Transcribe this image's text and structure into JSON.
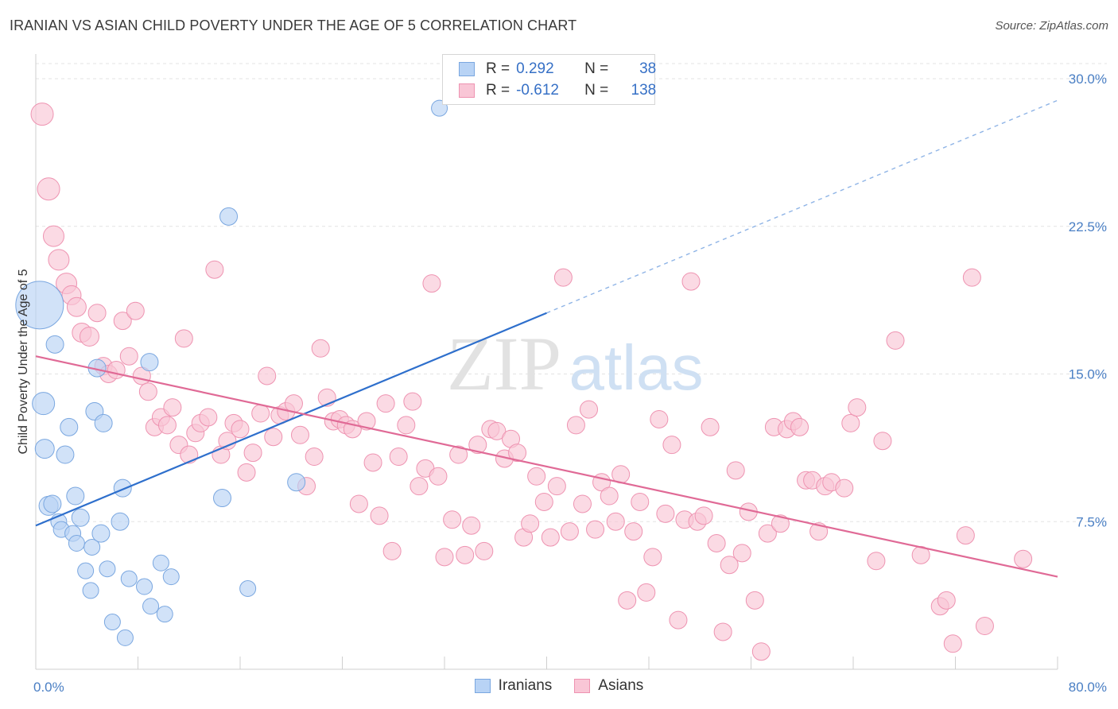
{
  "title": "IRANIAN VS ASIAN CHILD POVERTY UNDER THE AGE OF 5 CORRELATION CHART",
  "source": "Source: ZipAtlas.com",
  "watermark": {
    "zip": "ZIP",
    "atlas": "atlas"
  },
  "legend": {
    "r_label": "R =",
    "n_label": "N =",
    "rows": [
      {
        "r": "0.292",
        "n": "38",
        "fill": "#b8d3f5",
        "stroke": "#7aa7e0"
      },
      {
        "r": "-0.612",
        "n": "138",
        "fill": "#f9c6d6",
        "stroke": "#ee93b1"
      }
    ]
  },
  "bottom_legend": [
    {
      "label": "Iranians",
      "fill": "#b8d3f5",
      "stroke": "#7aa7e0"
    },
    {
      "label": "Asians",
      "fill": "#f9c6d6",
      "stroke": "#ee93b1"
    }
  ],
  "chart_data": {
    "type": "scatter",
    "title": "IRANIAN VS ASIAN CHILD POVERTY UNDER THE AGE OF 5 CORRELATION CHART",
    "xlabel": "",
    "ylabel": "Child Poverty Under the Age of 5",
    "xlim": [
      0,
      80
    ],
    "ylim": [
      0,
      30
    ],
    "x_tick_labels": [
      "0.0%",
      "80.0%"
    ],
    "y_ticks": [
      7.5,
      15.0,
      22.5,
      30.0
    ],
    "y_tick_labels": [
      "7.5%",
      "15.0%",
      "22.5%",
      "30.0%"
    ],
    "grid": "horizontal dashed",
    "legend_position": "top-center",
    "series": [
      {
        "name": "Iranians",
        "color": "#7aa7e0",
        "fill": "#b8d3f5",
        "trend": {
          "x0": 0,
          "y0": 7.3,
          "x1": 40,
          "y1": 18.1,
          "dashed_to_x": 80,
          "dashed_to_y": 28.9,
          "color": "#2e6fcc"
        },
        "points": [
          [
            0.3,
            18.5,
            3
          ],
          [
            0.6,
            13.5,
            1.4
          ],
          [
            0.7,
            11.2,
            1.2
          ],
          [
            1.0,
            8.3,
            1.2
          ],
          [
            1.5,
            16.5,
            1.1
          ],
          [
            1.3,
            8.4,
            1.1
          ],
          [
            1.8,
            7.5,
            1
          ],
          [
            2.0,
            7.1,
            1
          ],
          [
            2.3,
            10.9,
            1.1
          ],
          [
            2.6,
            12.3,
            1.1
          ],
          [
            2.9,
            6.9,
            1
          ],
          [
            3.1,
            8.8,
            1.1
          ],
          [
            3.2,
            6.4,
            1
          ],
          [
            3.5,
            7.7,
            1.1
          ],
          [
            3.9,
            5.0,
            1
          ],
          [
            4.3,
            4.0,
            1
          ],
          [
            4.4,
            6.2,
            1
          ],
          [
            4.6,
            13.1,
            1.1
          ],
          [
            4.8,
            15.3,
            1.1
          ],
          [
            5.1,
            6.9,
            1.1
          ],
          [
            5.3,
            12.5,
            1.1
          ],
          [
            5.6,
            5.1,
            1
          ],
          [
            6.0,
            2.4,
            1
          ],
          [
            6.6,
            7.5,
            1.1
          ],
          [
            6.8,
            9.2,
            1.1
          ],
          [
            7.0,
            1.6,
            1
          ],
          [
            7.3,
            4.6,
            1
          ],
          [
            8.5,
            4.2,
            1
          ],
          [
            8.9,
            15.6,
            1.1
          ],
          [
            9.0,
            3.2,
            1
          ],
          [
            9.8,
            5.4,
            1
          ],
          [
            10.1,
            2.8,
            1
          ],
          [
            10.6,
            4.7,
            1
          ],
          [
            14.6,
            8.7,
            1.1
          ],
          [
            15.1,
            23.0,
            1.1
          ],
          [
            16.6,
            4.1,
            1
          ],
          [
            20.4,
            9.5,
            1.1
          ],
          [
            31.6,
            28.5,
            1
          ]
        ]
      },
      {
        "name": "Asians",
        "color": "#ee93b1",
        "fill": "#f9c6d6",
        "trend": {
          "x0": 0,
          "y0": 15.9,
          "x1": 80,
          "y1": 4.7,
          "color": "#e06a96"
        },
        "points": [
          [
            0.5,
            28.2,
            1.4
          ],
          [
            1.0,
            24.4,
            1.4
          ],
          [
            1.4,
            22.0,
            1.3
          ],
          [
            1.8,
            20.8,
            1.3
          ],
          [
            2.4,
            19.6,
            1.3
          ],
          [
            2.8,
            19.0,
            1.2
          ],
          [
            3.2,
            18.4,
            1.2
          ],
          [
            3.6,
            17.1,
            1.2
          ],
          [
            4.2,
            16.9,
            1.2
          ],
          [
            4.8,
            18.1,
            1.1
          ],
          [
            5.3,
            15.4,
            1.1
          ],
          [
            5.7,
            15.0,
            1.1
          ],
          [
            6.3,
            15.2,
            1.1
          ],
          [
            6.8,
            17.7,
            1.1
          ],
          [
            7.3,
            15.9,
            1.1
          ],
          [
            7.8,
            18.2,
            1.1
          ],
          [
            8.3,
            14.9,
            1.1
          ],
          [
            8.8,
            14.1,
            1.1
          ],
          [
            9.3,
            12.3,
            1.1
          ],
          [
            9.8,
            12.8,
            1.1
          ],
          [
            10.3,
            12.4,
            1.1
          ],
          [
            10.7,
            13.3,
            1.1
          ],
          [
            11.2,
            11.4,
            1.1
          ],
          [
            11.6,
            16.8,
            1.1
          ],
          [
            12.0,
            10.9,
            1.1
          ],
          [
            12.5,
            12.0,
            1.1
          ],
          [
            12.9,
            12.5,
            1.1
          ],
          [
            13.5,
            12.8,
            1.1
          ],
          [
            14.0,
            20.3,
            1.1
          ],
          [
            14.5,
            10.9,
            1.1
          ],
          [
            15.0,
            11.6,
            1.1
          ],
          [
            15.5,
            12.5,
            1.1
          ],
          [
            16.0,
            12.2,
            1.1
          ],
          [
            16.5,
            10.0,
            1.1
          ],
          [
            17.0,
            11.0,
            1.1
          ],
          [
            17.6,
            13.0,
            1.1
          ],
          [
            18.1,
            14.9,
            1.1
          ],
          [
            18.6,
            11.8,
            1.1
          ],
          [
            19.1,
            12.9,
            1.1
          ],
          [
            19.6,
            13.1,
            1.1
          ],
          [
            20.2,
            13.5,
            1.1
          ],
          [
            20.7,
            11.9,
            1.1
          ],
          [
            21.2,
            9.3,
            1.1
          ],
          [
            21.8,
            10.8,
            1.1
          ],
          [
            22.3,
            16.3,
            1.1
          ],
          [
            22.8,
            13.8,
            1.1
          ],
          [
            23.3,
            12.6,
            1.1
          ],
          [
            23.8,
            12.7,
            1.1
          ],
          [
            24.3,
            12.4,
            1.1
          ],
          [
            24.8,
            12.2,
            1.1
          ],
          [
            25.3,
            8.4,
            1.1
          ],
          [
            25.9,
            12.6,
            1.1
          ],
          [
            26.4,
            10.5,
            1.1
          ],
          [
            26.9,
            7.8,
            1.1
          ],
          [
            27.4,
            13.5,
            1.1
          ],
          [
            27.9,
            6.0,
            1.1
          ],
          [
            28.4,
            10.8,
            1.1
          ],
          [
            29.0,
            12.4,
            1.1
          ],
          [
            29.5,
            13.6,
            1.1
          ],
          [
            30.0,
            9.3,
            1.1
          ],
          [
            30.5,
            10.2,
            1.1
          ],
          [
            31.0,
            19.6,
            1.1
          ],
          [
            31.5,
            9.8,
            1.1
          ],
          [
            32.0,
            5.7,
            1.1
          ],
          [
            32.6,
            7.6,
            1.1
          ],
          [
            33.1,
            10.9,
            1.1
          ],
          [
            33.6,
            5.8,
            1.1
          ],
          [
            34.1,
            7.3,
            1.1
          ],
          [
            34.6,
            11.4,
            1.1
          ],
          [
            35.1,
            6.0,
            1.1
          ],
          [
            35.6,
            12.2,
            1.1
          ],
          [
            36.1,
            12.1,
            1.1
          ],
          [
            36.7,
            10.7,
            1.1
          ],
          [
            37.2,
            11.7,
            1.1
          ],
          [
            37.7,
            11.0,
            1.1
          ],
          [
            38.2,
            6.7,
            1.1
          ],
          [
            38.7,
            7.4,
            1.1
          ],
          [
            39.2,
            9.8,
            1.1
          ],
          [
            39.8,
            8.5,
            1.1
          ],
          [
            40.3,
            6.7,
            1.1
          ],
          [
            40.8,
            9.3,
            1.1
          ],
          [
            41.3,
            19.9,
            1.1
          ],
          [
            41.8,
            7.0,
            1.1
          ],
          [
            42.3,
            12.4,
            1.1
          ],
          [
            42.8,
            8.4,
            1.1
          ],
          [
            43.3,
            13.2,
            1.1
          ],
          [
            43.8,
            7.1,
            1.1
          ],
          [
            44.3,
            9.5,
            1.1
          ],
          [
            44.9,
            8.8,
            1.1
          ],
          [
            45.4,
            7.5,
            1.1
          ],
          [
            45.8,
            9.9,
            1.1
          ],
          [
            46.3,
            3.5,
            1.1
          ],
          [
            46.8,
            7.0,
            1.1
          ],
          [
            47.3,
            8.5,
            1.1
          ],
          [
            47.8,
            3.9,
            1.1
          ],
          [
            48.3,
            5.7,
            1.1
          ],
          [
            48.8,
            12.7,
            1.1
          ],
          [
            49.3,
            7.9,
            1.1
          ],
          [
            49.8,
            11.4,
            1.1
          ],
          [
            50.3,
            2.5,
            1.1
          ],
          [
            50.8,
            7.6,
            1.1
          ],
          [
            51.3,
            19.7,
            1.1
          ],
          [
            51.8,
            7.5,
            1.1
          ],
          [
            52.3,
            7.8,
            1.1
          ],
          [
            52.8,
            12.3,
            1.1
          ],
          [
            53.3,
            6.4,
            1.1
          ],
          [
            53.8,
            1.9,
            1.1
          ],
          [
            54.3,
            5.3,
            1.1
          ],
          [
            54.8,
            10.1,
            1.1
          ],
          [
            55.3,
            5.9,
            1.1
          ],
          [
            55.8,
            8.0,
            1.1
          ],
          [
            56.3,
            3.5,
            1.1
          ],
          [
            56.8,
            0.9,
            1.1
          ],
          [
            57.3,
            6.9,
            1.1
          ],
          [
            57.8,
            12.3,
            1.1
          ],
          [
            58.3,
            7.4,
            1.1
          ],
          [
            58.8,
            12.2,
            1.1
          ],
          [
            59.3,
            12.6,
            1.1
          ],
          [
            59.8,
            12.3,
            1.1
          ],
          [
            60.3,
            9.6,
            1.1
          ],
          [
            60.8,
            9.6,
            1.1
          ],
          [
            61.3,
            7.0,
            1.1
          ],
          [
            61.8,
            9.3,
            1.1
          ],
          [
            62.3,
            9.5,
            1.1
          ],
          [
            63.3,
            9.2,
            1.1
          ],
          [
            63.8,
            12.5,
            1.1
          ],
          [
            64.3,
            13.3,
            1.1
          ],
          [
            65.8,
            5.5,
            1.1
          ],
          [
            66.3,
            11.6,
            1.1
          ],
          [
            67.3,
            16.7,
            1.1
          ],
          [
            69.3,
            5.8,
            1.1
          ],
          [
            70.8,
            3.2,
            1.1
          ],
          [
            71.3,
            3.5,
            1.1
          ],
          [
            71.8,
            1.3,
            1.1
          ],
          [
            72.8,
            6.8,
            1.1
          ],
          [
            73.3,
            19.9,
            1.1
          ],
          [
            74.3,
            2.2,
            1.1
          ],
          [
            77.3,
            5.6,
            1.1
          ]
        ]
      }
    ]
  }
}
